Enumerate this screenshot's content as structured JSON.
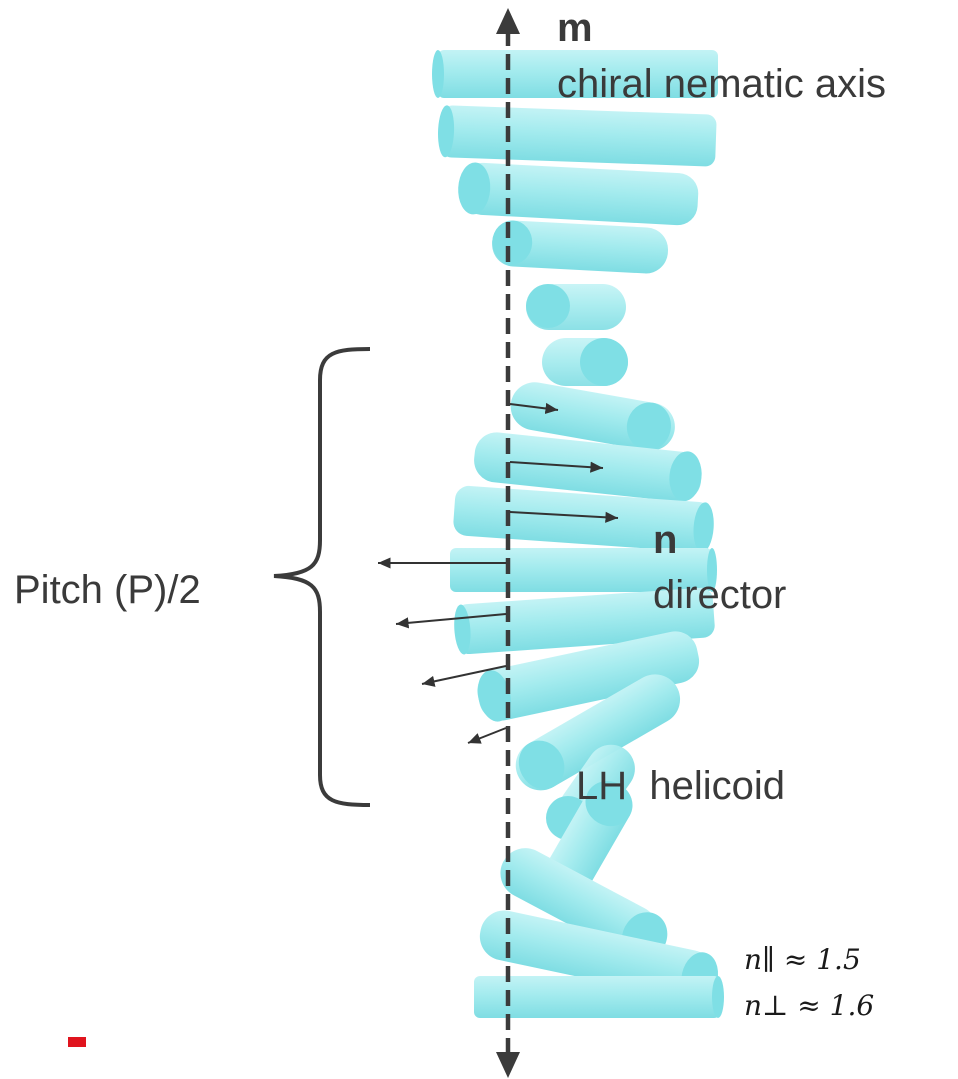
{
  "labels": {
    "axis_symbol": "m",
    "axis_name": "chiral nematic axis",
    "director_symbol": "n",
    "director_name": "director",
    "pitch": "Pitch (P)/2",
    "helicoid": "LH  helicoid",
    "n_parallel": "n∥ ≈ 1.5",
    "n_perp": "n⊥ ≈ 1.6"
  },
  "colors": {
    "rod_body": "#9ee9ec",
    "rod_end": "#7fdfe5",
    "axis": "#3b3b3b",
    "brace": "#3b3b3b",
    "text": "#3a3a3a",
    "red_mark": "#e0141e"
  }
}
